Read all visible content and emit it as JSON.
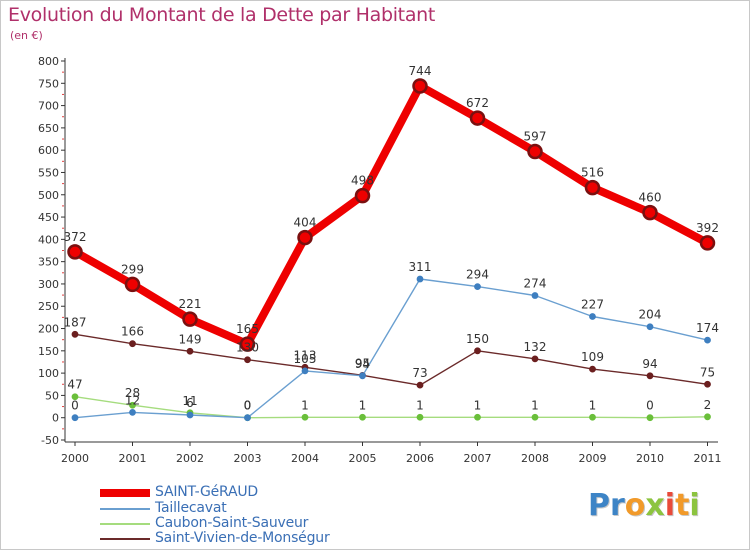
{
  "title": "Evolution du Montant de la Dette par Habitant",
  "subtitle": "(en €)",
  "logo": {
    "text": "Proxiti",
    "letters": [
      {
        "ch": "P",
        "color": "#3d84c6"
      },
      {
        "ch": "r",
        "color": "#3d84c6"
      },
      {
        "ch": "o",
        "color": "#f19a2a"
      },
      {
        "ch": "x",
        "color": "#8cc43f"
      },
      {
        "ch": "i",
        "color": "#e94a3a"
      },
      {
        "ch": "t",
        "color": "#f19a2a"
      },
      {
        "ch": "i",
        "color": "#8cc43f"
      }
    ]
  },
  "chart_data": {
    "type": "line",
    "title": "Evolution du Montant de la Dette par Habitant",
    "subtitle": "(en €)",
    "xlabel": "",
    "ylabel": "",
    "categories": [
      "2000",
      "2001",
      "2002",
      "2003",
      "2004",
      "2005",
      "2006",
      "2007",
      "2008",
      "2009",
      "2010",
      "2011"
    ],
    "ylim": [
      -50,
      800
    ],
    "yticks": [
      -50,
      0,
      50,
      100,
      150,
      200,
      250,
      300,
      350,
      400,
      450,
      500,
      550,
      600,
      650,
      700,
      750,
      800
    ],
    "grid": false,
    "legend_position": "bottom-left",
    "series": [
      {
        "name": "SAINT-GéRAUD",
        "color": "#ee0000",
        "marker_color": "#7a1010",
        "width": 8,
        "values": [
          372,
          299,
          221,
          165,
          404,
          498,
          744,
          672,
          597,
          516,
          460,
          392
        ],
        "labels": [
          "372",
          "299",
          "221",
          "165",
          "404",
          "498",
          "744",
          "672",
          "597",
          "516",
          "460",
          "392"
        ]
      },
      {
        "name": "Taillecavat",
        "color": "#6a9fd0",
        "marker_color": "#3e7fc0",
        "width": 1.4,
        "values": [
          0,
          12,
          6,
          0,
          105,
          94,
          311,
          294,
          274,
          227,
          204,
          174
        ],
        "labels": [
          "0",
          "12",
          "6",
          "0",
          "105",
          "94",
          "311",
          "294",
          "274",
          "227",
          "204",
          "174"
        ]
      },
      {
        "name": "Caubon-Saint-Sauveur",
        "color": "#a5dc7e",
        "marker_color": "#6abf3a",
        "width": 1.4,
        "values": [
          47,
          28,
          11,
          0,
          1,
          1,
          1,
          1,
          1,
          1,
          0,
          2
        ],
        "labels": [
          "47",
          "28",
          "11",
          "0",
          "1",
          "1",
          "1",
          "1",
          "1",
          "1",
          "0",
          "2"
        ]
      },
      {
        "name": "Saint-Vivien-de-Monségur",
        "color": "#6b2a2a",
        "marker_color": "#6b1f1f",
        "width": 1.4,
        "values": [
          187,
          166,
          149,
          130,
          113,
          95,
          73,
          150,
          132,
          109,
          94,
          75
        ],
        "labels": [
          "187",
          "166",
          "149",
          "130",
          "113",
          "95",
          "73",
          "150",
          "132",
          "109",
          "94",
          "75"
        ]
      }
    ]
  }
}
